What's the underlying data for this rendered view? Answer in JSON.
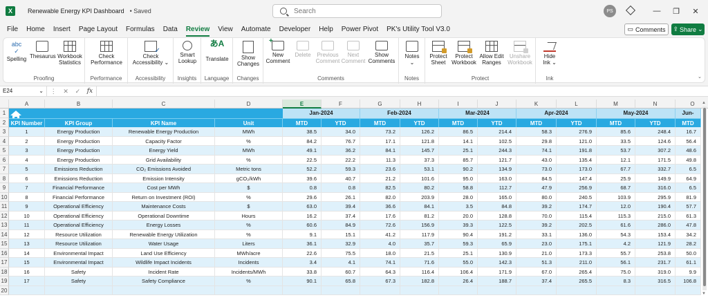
{
  "titlebar": {
    "app_icon": "excel-icon",
    "doc_title": "Renewable Energy KPI Dashboard",
    "save_status": "• Saved",
    "search_placeholder": "Search",
    "user_initials": "PS",
    "minimize": "—",
    "restore": "❐",
    "close": "✕"
  },
  "menu": {
    "tabs": [
      "File",
      "Home",
      "Insert",
      "Page Layout",
      "Formulas",
      "Data",
      "Review",
      "View",
      "Automate",
      "Developer",
      "Help",
      "Power Pivot",
      "PK's Utility Tool V3.0"
    ],
    "active_tab": "Review",
    "comments_label": "Comments",
    "share_label": "Share"
  },
  "ribbon": {
    "groups": {
      "proofing": "Proofing",
      "performance": "Performance",
      "accessibility": "Accessibility",
      "insights": "Insights",
      "language": "Language",
      "changes": "Changes",
      "comments": "Comments",
      "notes": "Notes",
      "protect": "Protect",
      "ink": "Ink"
    },
    "buttons": {
      "spelling": "Spelling",
      "thesaurus": "Thesaurus",
      "workbook_statistics_1": "Workbook",
      "workbook_statistics_2": "Statistics",
      "check_performance_1": "Check",
      "check_performance_2": "Performance",
      "check_accessibility_1": "Check",
      "check_accessibility_2": "Accessibility ⌄",
      "smart_lookup_1": "Smart",
      "smart_lookup_2": "Lookup",
      "translate": "Translate",
      "show_changes_1": "Show",
      "show_changes_2": "Changes",
      "new_comment_1": "New",
      "new_comment_2": "Comment",
      "delete": "Delete",
      "previous_comment_1": "Previous",
      "previous_comment_2": "Comment",
      "next_comment_1": "Next",
      "next_comment_2": "Comment",
      "show_comments_1": "Show",
      "show_comments_2": "Comments",
      "notes_1": "Notes",
      "notes_2": "⌄",
      "protect_sheet_1": "Protect",
      "protect_sheet_2": "Sheet",
      "protect_workbook_1": "Protect",
      "protect_workbook_2": "Workbook",
      "allow_edit_ranges_1": "Allow Edit",
      "allow_edit_ranges_2": "Ranges",
      "unshare_workbook_1": "Unshare",
      "unshare_workbook_2": "Workbook",
      "hide_ink_1": "Hide",
      "hide_ink_2": "Ink ⌄"
    }
  },
  "formula_bar": {
    "name_box": "E24",
    "fx": "fx",
    "value": ""
  },
  "columns": [
    "A",
    "B",
    "C",
    "D",
    "E",
    "F",
    "G",
    "H",
    "I",
    "J",
    "K",
    "L",
    "M",
    "N",
    "O"
  ],
  "selected_column": "E",
  "table": {
    "headers": [
      "KPI Number",
      "KPI Group",
      "KPI Name",
      "Unit"
    ],
    "months": [
      "Jan-2024",
      "Feb-2024",
      "Mar-2024",
      "Apr-2024",
      "May-2024",
      "Jun-"
    ],
    "sub_headers": [
      "MTD",
      "YTD"
    ],
    "rows": [
      [
        "1",
        "Energy Production",
        "Renewable Energy Production",
        "MWh",
        "38.5",
        "34.0",
        "73.2",
        "126.2",
        "86.5",
        "214.4",
        "58.3",
        "276.9",
        "85.6",
        "248.4",
        "16.7"
      ],
      [
        "2",
        "Energy Production",
        "Capacity Factor",
        "%",
        "84.2",
        "76.7",
        "17.1",
        "121.8",
        "14.1",
        "102.5",
        "29.8",
        "121.0",
        "33.5",
        "124.6",
        "56.4"
      ],
      [
        "3",
        "Energy Production",
        "Energy Yield",
        "MWh",
        "49.1",
        "36.2",
        "84.1",
        "145.7",
        "25.1",
        "244.3",
        "74.1",
        "191.8",
        "53.7",
        "307.2",
        "48.6"
      ],
      [
        "4",
        "Energy Production",
        "Grid Availability",
        "%",
        "22.5",
        "22.2",
        "11.3",
        "37.3",
        "85.7",
        "121.7",
        "43.0",
        "135.4",
        "12.1",
        "171.5",
        "49.8"
      ],
      [
        "5",
        "Emissions Reduction",
        "CO₂ Emissions Avoided",
        "Metric tons",
        "52.2",
        "59.3",
        "23.6",
        "53.1",
        "90.2",
        "134.9",
        "73.0",
        "173.0",
        "67.7",
        "332.7",
        "6.5"
      ],
      [
        "6",
        "Emissions Reduction",
        "Emission Intensity",
        "gCO₂/kWh",
        "39.6",
        "40.7",
        "21.2",
        "101.6",
        "95.0",
        "163.0",
        "84.5",
        "147.4",
        "25.9",
        "149.9",
        "64.9"
      ],
      [
        "7",
        "Financial Performance",
        "Cost per MWh",
        "$",
        "0.8",
        "0.8",
        "82.5",
        "80.2",
        "58.8",
        "112.7",
        "47.9",
        "256.9",
        "68.7",
        "316.0",
        "6.5"
      ],
      [
        "8",
        "Financial Performance",
        "Return on Investment (ROI)",
        "%",
        "29.6",
        "26.1",
        "82.0",
        "203.9",
        "28.0",
        "165.0",
        "80.0",
        "240.5",
        "103.9",
        "295.9",
        "81.9"
      ],
      [
        "9",
        "Operational Efficiency",
        "Maintenance Costs",
        "$",
        "63.0",
        "39.4",
        "36.6",
        "84.1",
        "3.5",
        "84.8",
        "39.2",
        "174.7",
        "12.0",
        "190.4",
        "57.7"
      ],
      [
        "10",
        "Operational Efficiency",
        "Operational Downtime",
        "Hours",
        "16.2",
        "37.4",
        "17.6",
        "81.2",
        "20.0",
        "128.8",
        "70.0",
        "115.4",
        "115.3",
        "215.0",
        "61.3"
      ],
      [
        "11",
        "Operational Efficiency",
        "Energy Losses",
        "%",
        "60.6",
        "84.9",
        "72.6",
        "156.9",
        "39.3",
        "122.5",
        "39.2",
        "202.5",
        "61.6",
        "286.0",
        "47.8"
      ],
      [
        "12",
        "Resource Utilization",
        "Renewable Energy Utilization",
        "%",
        "9.1",
        "15.1",
        "41.2",
        "117.9",
        "90.4",
        "191.2",
        "33.1",
        "136.0",
        "54.3",
        "153.4",
        "34.2"
      ],
      [
        "13",
        "Resource Utilization",
        "Water Usage",
        "Liters",
        "36.1",
        "32.9",
        "4.0",
        "35.7",
        "59.3",
        "65.9",
        "23.0",
        "175.1",
        "4.2",
        "121.9",
        "28.2"
      ],
      [
        "14",
        "Environmental Impact",
        "Land Use Efficiency",
        "MWh/acre",
        "22.6",
        "75.5",
        "18.0",
        "21.5",
        "25.1",
        "130.9",
        "21.0",
        "173.3",
        "55.7",
        "253.8",
        "50.0"
      ],
      [
        "15",
        "Environmental Impact",
        "Wildlife Impact Incidents",
        "Incidents",
        "3.4",
        "4.1",
        "74.1",
        "71.6",
        "55.0",
        "142.3",
        "51.3",
        "211.0",
        "56.1",
        "231.7",
        "61.1"
      ],
      [
        "16",
        "Safety",
        "Incident Rate",
        "Incidents/MWh",
        "33.8",
        "60.7",
        "64.3",
        "116.4",
        "106.4",
        "171.9",
        "67.0",
        "265.4",
        "75.0",
        "319.0",
        "9.9"
      ],
      [
        "17",
        "Safety",
        "Safety Compliance",
        "%",
        "90.1",
        "65.8",
        "67.3",
        "182.8",
        "26.4",
        "188.7",
        "37.4",
        "265.5",
        "8.3",
        "316.5",
        "106.8"
      ]
    ]
  }
}
